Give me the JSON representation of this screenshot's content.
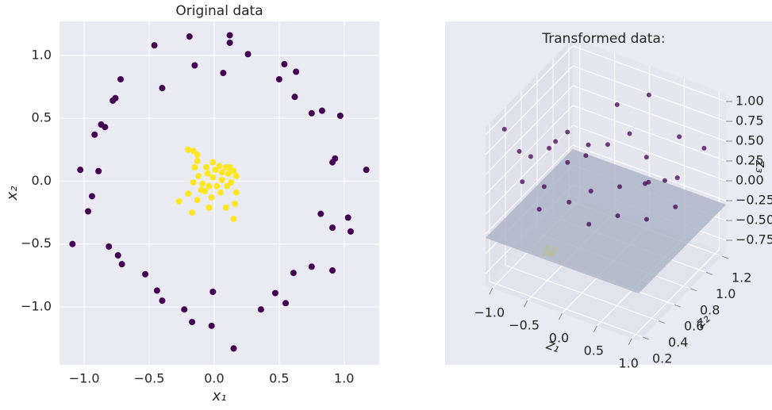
{
  "chart_data": [
    {
      "type": "scatter",
      "title": "Original data",
      "x_label": "x₁",
      "y_label": "x₂",
      "xlim": [
        -1.19,
        1.27
      ],
      "ylim": [
        -1.46,
        1.27
      ],
      "xticks": [
        {
          "value": -1.0,
          "label": "−1.0"
        },
        {
          "value": -0.5,
          "label": "−0.5"
        },
        {
          "value": 0.0,
          "label": "0.0"
        },
        {
          "value": 0.5,
          "label": "0.5"
        },
        {
          "value": 1.0,
          "label": "1.0"
        }
      ],
      "yticks": [
        {
          "value": -1.0,
          "label": "−1.0"
        },
        {
          "value": -0.5,
          "label": "−0.5"
        },
        {
          "value": 0.0,
          "label": "0.0"
        },
        {
          "value": 0.5,
          "label": "0.5"
        },
        {
          "value": 1.0,
          "label": "1.0"
        }
      ],
      "grid": true,
      "series": [
        {
          "color": "#440154",
          "x": [
            0.12,
            0.12,
            -0.19,
            -0.46,
            0.26,
            -0.15,
            0.54,
            0.07,
            0.63,
            0.5,
            -0.72,
            -0.4,
            -0.76,
            -0.78,
            0.62,
            0.75,
            0.83,
            0.97,
            -0.87,
            -0.84,
            -0.92,
            0.93,
            0.91,
            1.17,
            -1.03,
            -0.89,
            -0.94,
            -0.97,
            0.82,
            1.03,
            0.91,
            1.05,
            -1.09,
            -0.81,
            -0.74,
            -0.71,
            0.75,
            0.91,
            0.61,
            -0.53,
            -0.44,
            -0.01,
            0.47,
            -0.4,
            0.55,
            -0.23,
            0.36,
            -0.17,
            -0.02,
            0.15
          ],
          "values": [
            1.16,
            1.1,
            1.15,
            1.08,
            1.01,
            0.92,
            0.93,
            0.86,
            0.87,
            0.81,
            0.81,
            0.74,
            0.66,
            0.64,
            0.67,
            0.54,
            0.56,
            0.52,
            0.45,
            0.43,
            0.37,
            0.18,
            0.15,
            0.09,
            0.09,
            0.08,
            -0.12,
            -0.24,
            -0.26,
            -0.29,
            -0.37,
            -0.4,
            -0.5,
            -0.52,
            -0.59,
            -0.66,
            -0.68,
            -0.71,
            -0.73,
            -0.74,
            -0.87,
            -0.88,
            -0.89,
            -0.95,
            -0.97,
            -1.02,
            -1.02,
            -1.12,
            -1.15,
            -1.33
          ]
        },
        {
          "color": "#fde725",
          "x": [
            -0.2,
            -0.16,
            -0.13,
            -0.15,
            -0.01,
            0.04,
            0.09,
            0.12,
            0.15,
            0.06,
            -0.05,
            -0.12,
            -0.16,
            -0.09,
            -0.04,
            0.02,
            0.1,
            0.13,
            0.06,
            -0.01,
            -0.1,
            -0.2,
            -0.27,
            -0.13,
            -0.02,
            0.05,
            0.17,
            0.09,
            0.16,
            0.15,
            -0.17,
            -0.04,
            -0.07,
            0.01,
            0.17,
            -0.13,
            0.11,
            -0.06
          ],
          "values": [
            0.25,
            0.24,
            0.21,
            0.11,
            0.15,
            0.12,
            0.11,
            0.11,
            0.08,
            0.07,
            0.06,
            0.04,
            -0.01,
            -0.02,
            -0.04,
            -0.04,
            -0.04,
            -0.01,
            0.01,
            0.03,
            -0.07,
            -0.1,
            -0.16,
            -0.15,
            -0.13,
            -0.09,
            -0.09,
            -0.21,
            -0.18,
            -0.3,
            -0.25,
            -0.21,
            -0.08,
            0.09,
            0.04,
            0.16,
            0.06,
            0.11
          ]
        }
      ]
    },
    {
      "type": "scatter3d",
      "title": "Transformed data:",
      "x_label": "z₁",
      "y_label": "z₂",
      "z_label": "z₃",
      "xlim": [
        -1.1,
        1.1
      ],
      "ylim": [
        0.15,
        1.25
      ],
      "zlim": [
        -0.9,
        1.1
      ],
      "xticks": [
        {
          "value": -1.0,
          "label": "−1.0"
        },
        {
          "value": -0.5,
          "label": "−0.5"
        },
        {
          "value": 0.0,
          "label": "0.0"
        },
        {
          "value": 0.5,
          "label": "0.5"
        },
        {
          "value": 1.0,
          "label": "1.0"
        }
      ],
      "yticks": [
        0.2,
        0.4,
        0.6,
        0.8,
        {
          "value": 1.0,
          "label": "1.0"
        },
        1.2
      ],
      "zticks": [
        {
          "value": -0.75,
          "label": "−0.75"
        },
        {
          "value": -0.5,
          "label": "−0.50"
        },
        {
          "value": -0.25,
          "label": "−0.25"
        },
        {
          "value": 0.0,
          "label": "0.00"
        },
        {
          "value": 0.25,
          "label": "0.25"
        },
        {
          "value": 0.5,
          "label": "0.50"
        },
        {
          "value": 0.75,
          "label": "0.75"
        },
        {
          "value": 1.0,
          "label": "1.00"
        }
      ],
      "plane_z": -0.3,
      "plane_color": "#a9b3c6",
      "series": [
        {
          "color": "#fde725",
          "x": [
            -0.55,
            -0.5,
            -0.6,
            -0.52,
            -0.58,
            -0.47,
            -0.62,
            -0.54,
            -0.5,
            -0.57,
            -0.53,
            -0.6
          ],
          "y": [
            0.48,
            0.5,
            0.46,
            0.45,
            0.52,
            0.47,
            0.49,
            0.51,
            0.44,
            0.47,
            0.49,
            0.5
          ],
          "z": [
            -0.64,
            -0.6,
            -0.66,
            -0.62,
            -0.68,
            -0.58,
            -0.63,
            -0.7,
            -0.61,
            -0.65,
            -0.67,
            -0.6
          ]
        },
        {
          "color": "#440154",
          "x": [
            -1.0,
            -0.9,
            -0.85,
            -0.8,
            -0.7,
            -0.6,
            -0.55,
            -0.5,
            -0.4,
            -0.3,
            -0.2,
            -0.1,
            0.0,
            0.1,
            0.2,
            0.3,
            0.4,
            0.5,
            0.6,
            0.7,
            0.8,
            0.9,
            1.0,
            -0.95,
            -0.65,
            -0.35,
            0.05,
            0.45,
            0.85,
            -0.15
          ],
          "y": [
            0.3,
            0.4,
            0.5,
            0.35,
            0.6,
            0.45,
            0.7,
            0.3,
            0.8,
            0.5,
            0.9,
            0.6,
            1.0,
            0.4,
            0.7,
            0.95,
            0.5,
            0.8,
            1.1,
            0.6,
            0.9,
            1.15,
            0.7,
            0.9,
            1.05,
            1.15,
            1.2,
            1.05,
            0.45,
            0.35
          ],
          "z": [
            0.95,
            0.6,
            0.45,
            0.3,
            0.5,
            0.2,
            0.65,
            0.1,
            0.3,
            0.05,
            0.4,
            0.15,
            0.5,
            0.0,
            0.2,
            0.35,
            0.1,
            0.25,
            0.55,
            0.05,
            0.3,
            0.45,
            0.2,
            0.2,
            0.1,
            0.6,
            0.8,
            0.0,
            0.7,
            0.75
          ]
        }
      ]
    }
  ]
}
